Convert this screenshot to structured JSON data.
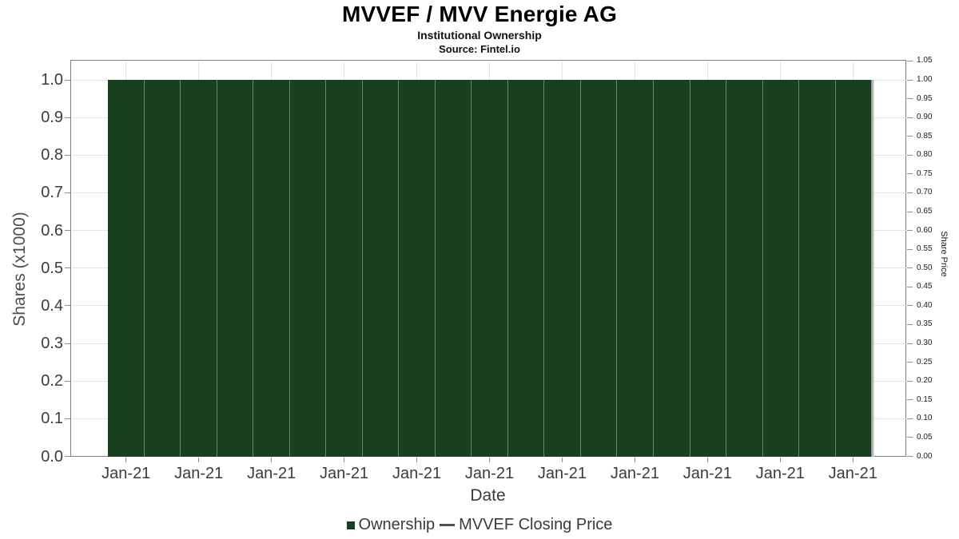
{
  "chart_data": {
    "type": "bar",
    "title": "MVVEF / MVV Energie AG",
    "subtitle": "Institutional Ownership",
    "source": "Source: Fintel.io",
    "xlabel": "Date",
    "ylabel_left": "Shares (x1000)",
    "ylabel_right": "Share Price",
    "categories": [
      "Jan-21",
      "Jan-21",
      "Jan-21",
      "Jan-21",
      "Jan-21",
      "Jan-21",
      "Jan-21",
      "Jan-21",
      "Jan-21",
      "Jan-21",
      "Jan-21",
      "Jan-21",
      "Jan-21",
      "Jan-21",
      "Jan-21",
      "Jan-21",
      "Jan-21",
      "Jan-21",
      "Jan-21",
      "Jan-21",
      "Jan-21"
    ],
    "series": [
      {
        "name": "Ownership",
        "type": "bar",
        "color": "#17401e",
        "values": [
          1.0,
          1.0,
          1.0,
          1.0,
          1.0,
          1.0,
          1.0,
          1.0,
          1.0,
          1.0,
          1.0,
          1.0,
          1.0,
          1.0,
          1.0,
          1.0,
          1.0,
          1.0,
          1.0,
          1.0,
          1.0
        ]
      },
      {
        "name": "MVVEF Closing Price",
        "type": "line",
        "color": "#4f4f4f",
        "values": []
      }
    ],
    "x_tick_labels": [
      "Jan-21",
      "Jan-21",
      "Jan-21",
      "Jan-21",
      "Jan-21",
      "Jan-21",
      "Jan-21",
      "Jan-21",
      "Jan-21",
      "Jan-21",
      "Jan-21"
    ],
    "y_left_tick_labels": [
      "0.0",
      "0.1",
      "0.2",
      "0.3",
      "0.4",
      "0.5",
      "0.6",
      "0.7",
      "0.8",
      "0.9",
      "1.0"
    ],
    "y_right_tick_labels": [
      "0.00",
      "0.05",
      "0.10",
      "0.15",
      "0.20",
      "0.25",
      "0.30",
      "0.35",
      "0.40",
      "0.45",
      "0.50",
      "0.55",
      "0.60",
      "0.65",
      "0.70",
      "0.75",
      "0.80",
      "0.85",
      "0.90",
      "0.95",
      "1.00",
      "1.05"
    ],
    "ylim_left": [
      0.0,
      1.05
    ],
    "ylim_right": [
      0.0,
      1.05
    ],
    "grid": true,
    "legend_position": "bottom",
    "colors": {
      "bar_fill": "#17401e",
      "grid_line": "#e3e3e3",
      "plot_border": "#7d7d7d",
      "price_line": "#8d8d8d"
    }
  }
}
